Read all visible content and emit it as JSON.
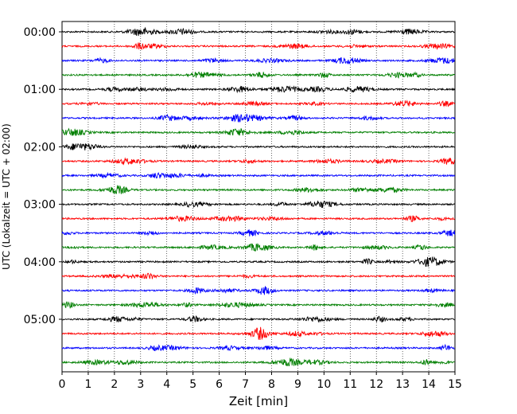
{
  "chart_data": {
    "type": "line",
    "title": "",
    "xlabel": "Zeit  [min]",
    "ylabel": "UTC (Lokalzeit = UTC + 02:00)",
    "xlim": [
      0,
      15
    ],
    "x_ticks": [
      0,
      1,
      2,
      3,
      4,
      5,
      6,
      7,
      8,
      9,
      10,
      11,
      12,
      13,
      14,
      15
    ],
    "y_tick_labels": [
      "00:00",
      "01:00",
      "02:00",
      "03:00",
      "04:00",
      "05:00"
    ],
    "grid": "vertical dotted lines at each minute",
    "legend": "none",
    "trace_interval_minutes": 15,
    "trace_count": 24,
    "trace_colors": [
      "#000000",
      "#ff0000",
      "#0000ff",
      "#007f00"
    ]
  }
}
